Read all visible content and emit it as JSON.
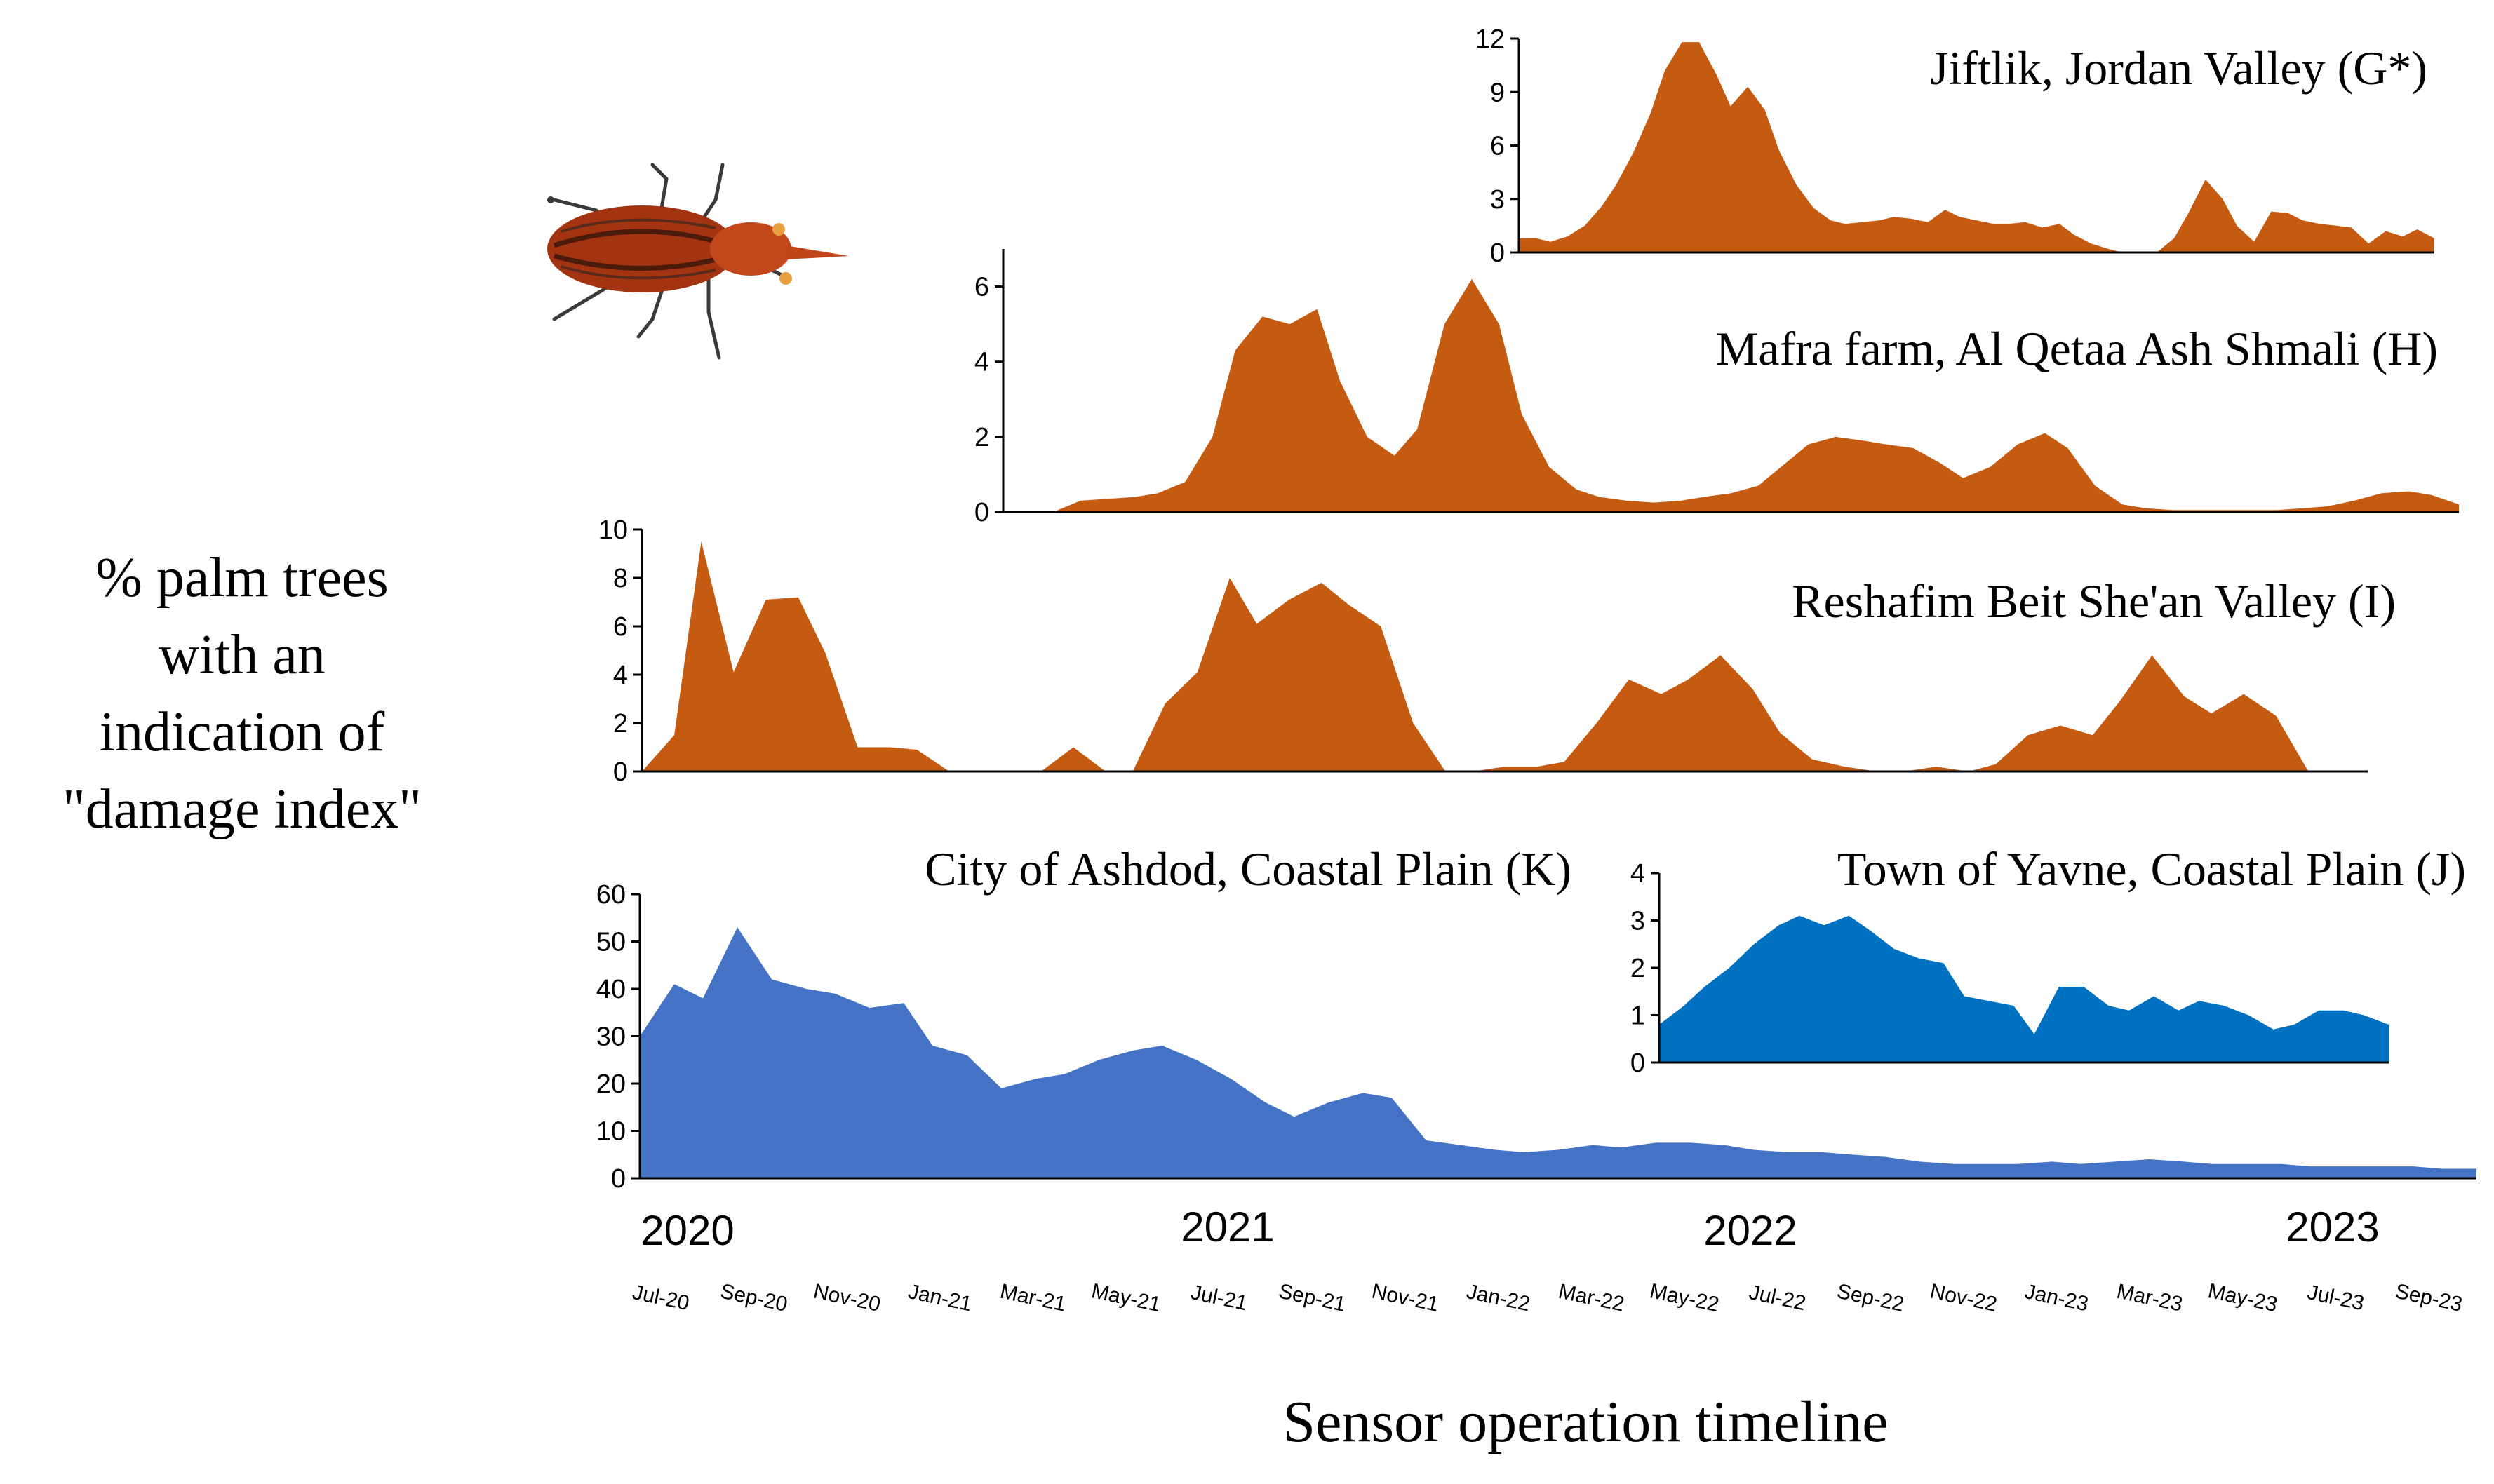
{
  "figure": {
    "ylabel_lines": [
      "% palm trees",
      "with an",
      "indication of",
      "\"damage index\""
    ],
    "xlabel": "Sensor operation timeline",
    "years": [
      "2020",
      "2021",
      "2022",
      "2023"
    ],
    "months": [
      "Jul-20",
      "Sep-20",
      "Nov-20",
      "Jan-21",
      "Mar-21",
      "May-21",
      "Jul-21",
      "Sep-21",
      "Nov-21",
      "Jan-22",
      "Mar-22",
      "May-22",
      "Jul-22",
      "Sep-22",
      "Nov-22",
      "Jan-23",
      "Mar-23",
      "May-23",
      "Jul-23",
      "Sep-23"
    ],
    "colors": {
      "orange": "#C55A11",
      "blue_dark": "#4472C4",
      "blue_mid": "#0070C0",
      "axis": "#000000"
    }
  },
  "chart_data": [
    {
      "id": "G",
      "type": "area",
      "title": "Jiftlik, Jordan Valley (G*)",
      "color": "#C55A11",
      "ylim": [
        0,
        12
      ],
      "yticks": [
        0,
        3,
        6,
        9,
        12
      ],
      "x": [
        0,
        0.6,
        1.1,
        1.7,
        2.3,
        2.9,
        3.4,
        4.0,
        4.6,
        5.1,
        5.7,
        6.3,
        6.9,
        7.4,
        8.0,
        8.6,
        9.1,
        9.7,
        10.3,
        10.9,
        11.4,
        12.0,
        12.6,
        13.1,
        13.7,
        14.3,
        14.9,
        15.4,
        16.0,
        16.6,
        17.1,
        17.7,
        18.3,
        18.9,
        19.4,
        20.0,
        20.6,
        21.1,
        21.7,
        22.3,
        22.9,
        23.4,
        24.0,
        24.6,
        25.1,
        25.7,
        26.3,
        26.9,
        27.4,
        28.0,
        28.6,
        29.1,
        29.7,
        30.3,
        30.9,
        31.4,
        32.0
      ],
      "values": [
        0.8,
        0.8,
        0.6,
        0.9,
        1.5,
        2.6,
        3.8,
        5.6,
        7.8,
        10.2,
        11.8,
        11.8,
        10.0,
        8.2,
        9.3,
        8.0,
        5.7,
        3.8,
        2.5,
        1.8,
        1.6,
        1.7,
        1.8,
        2.0,
        1.9,
        1.7,
        2.4,
        2.0,
        1.8,
        1.6,
        1.6,
        1.7,
        1.4,
        1.6,
        1.0,
        0.5,
        0.2,
        0,
        0,
        0,
        0.8,
        2.2,
        4.1,
        3.0,
        1.5,
        0.6,
        2.3,
        2.2,
        1.8,
        1.6,
        1.5,
        1.4,
        0.5,
        1.2,
        0.9,
        1.3,
        0.8
      ]
    },
    {
      "id": "H",
      "type": "area",
      "title": "Mafra farm, Al Qetaa Ash Shmali (H)",
      "color": "#C55A11",
      "ylim": [
        0,
        7
      ],
      "yticks": [
        0,
        2,
        4,
        6
      ],
      "x": [
        0,
        0.6,
        1.1,
        1.7,
        2.3,
        2.9,
        3.4,
        4.0,
        4.6,
        5.1,
        5.7,
        6.3,
        6.9,
        7.4,
        8.0,
        8.6,
        9.1,
        9.7,
        10.3,
        10.9,
        11.4,
        12.0,
        12.6,
        13.1,
        13.7,
        14.3,
        14.9,
        15.4,
        16.0,
        16.6,
        17.1,
        17.7,
        18.3,
        18.9,
        19.4,
        20.0,
        20.6,
        21.1,
        21.7,
        22.3,
        22.9,
        23.4,
        24.0,
        24.6,
        25.1,
        25.7,
        26.3,
        26.9,
        27.4,
        28.0,
        28.6,
        29.1,
        29.7,
        30.3,
        30.9,
        31.4,
        32.0
      ],
      "values": [
        0,
        0,
        0,
        0.3,
        0.35,
        0.4,
        0.5,
        0.8,
        2.0,
        4.3,
        5.2,
        5.0,
        5.4,
        3.5,
        2.0,
        1.5,
        2.2,
        5.0,
        6.2,
        5.0,
        2.6,
        1.2,
        0.6,
        0.4,
        0.3,
        0.25,
        0.3,
        0.4,
        0.5,
        0.7,
        1.2,
        1.8,
        2.0,
        1.9,
        1.8,
        1.7,
        1.3,
        0.9,
        1.2,
        1.8,
        2.1,
        1.7,
        0.7,
        0.2,
        0.1,
        0.05,
        0.05,
        0.05,
        0.05,
        0.05,
        0.1,
        0.15,
        0.3,
        0.5,
        0.55,
        0.45,
        0.2
      ]
    },
    {
      "id": "I",
      "type": "area",
      "title": "Reshafim Beit She'an Valley (I)",
      "color": "#C55A11",
      "ylim": [
        0,
        10
      ],
      "yticks": [
        0,
        2,
        4,
        6,
        8,
        10
      ],
      "x": [
        0,
        0.6,
        1.1,
        1.7,
        2.3,
        2.9,
        3.4,
        4.0,
        4.6,
        5.1,
        5.7,
        6.3,
        6.9,
        7.4,
        8.0,
        8.6,
        9.1,
        9.7,
        10.3,
        10.9,
        11.4,
        12.0,
        12.6,
        13.1,
        13.7,
        14.3,
        14.9,
        15.4,
        16.0,
        16.6,
        17.1,
        17.7,
        18.3,
        18.9,
        19.4,
        20.0,
        20.6,
        21.1,
        21.7,
        22.3,
        22.9,
        23.4,
        24.0,
        24.6,
        25.1,
        25.7,
        26.3,
        26.9,
        27.4,
        28.0,
        28.6,
        29.1,
        29.7,
        30.3,
        30.9,
        31.4,
        32.0
      ],
      "values": [
        0,
        1.5,
        9.5,
        4.1,
        7.1,
        7.2,
        4.9,
        1.0,
        1.0,
        0.9,
        0,
        0,
        0,
        0,
        1.0,
        0,
        0,
        2.8,
        4.1,
        8.0,
        6.1,
        7.1,
        7.8,
        6.9,
        6.0,
        2.0,
        0,
        0,
        0.2,
        0.2,
        0.4,
        2.0,
        3.8,
        3.2,
        3.8,
        4.8,
        3.4,
        1.6,
        0.5,
        0.2,
        0,
        0,
        0.2,
        0,
        0.3,
        1.5,
        1.9,
        1.5,
        2.9,
        4.8,
        3.1,
        2.4,
        3.2,
        2.3,
        0,
        0,
        0
      ]
    },
    {
      "id": "K",
      "type": "area",
      "title": "City of Ashdod, Coastal Plain (K)",
      "color": "#4472C4",
      "ylim": [
        0,
        60
      ],
      "yticks": [
        0,
        10,
        20,
        30,
        40,
        50,
        60
      ],
      "x": [
        0,
        0.6,
        1.1,
        1.7,
        2.3,
        2.9,
        3.4,
        4.0,
        4.6,
        5.1,
        5.7,
        6.3,
        6.9,
        7.4,
        8.0,
        8.6,
        9.1,
        9.7,
        10.3,
        10.9,
        11.4,
        12.0,
        12.6,
        13.1,
        13.7,
        14.3,
        14.9,
        15.4,
        16.0,
        16.6,
        17.1,
        17.7,
        18.3,
        18.9,
        19.4,
        20.0,
        20.6,
        21.1,
        21.7,
        22.3,
        22.9,
        23.4,
        24.0,
        24.6,
        25.1,
        25.7,
        26.3,
        26.9,
        27.4,
        28.0,
        28.6,
        29.1,
        29.7,
        30.3,
        30.9,
        31.4,
        32.0
      ],
      "values": [
        30,
        41,
        38,
        53,
        42,
        40,
        39,
        36,
        37,
        28,
        26,
        19,
        21,
        22,
        25,
        27,
        28,
        25,
        21,
        16,
        13,
        16,
        18,
        17,
        8,
        7,
        6,
        5.5,
        6,
        7,
        6.5,
        7.5,
        7.5,
        7,
        6,
        5.5,
        5.5,
        5,
        4.5,
        3.5,
        3,
        3,
        3,
        3.5,
        3,
        3.5,
        4,
        3.5,
        3,
        3,
        3,
        2.5,
        2.5,
        2.5,
        2.5,
        2,
        2
      ]
    },
    {
      "id": "J",
      "type": "area",
      "title": "Town of Yavne, Coastal Plain (J)",
      "color": "#0070C0",
      "ylim": [
        0,
        4
      ],
      "yticks": [
        0,
        1,
        2,
        3,
        4
      ],
      "x": [
        0,
        0.6,
        1.1,
        1.7,
        2.3,
        2.9,
        3.4,
        4.0,
        4.6,
        5.1,
        5.7,
        6.3,
        6.9,
        7.4,
        8.0,
        8.6,
        9.1,
        9.7,
        10.3,
        10.9,
        11.4,
        12.0,
        12.6,
        13.1,
        13.7,
        14.3,
        14.9,
        15.4,
        16.0,
        16.6,
        17.1,
        17.7
      ],
      "values": [
        0.8,
        1.2,
        1.6,
        2.0,
        2.5,
        2.9,
        3.1,
        2.9,
        3.1,
        2.8,
        2.4,
        2.2,
        2.1,
        1.4,
        1.3,
        1.2,
        0.6,
        1.6,
        1.6,
        1.2,
        1.1,
        1.4,
        1.1,
        1.3,
        1.2,
        1.0,
        0.7,
        0.8,
        1.1,
        1.1,
        1.0,
        0.8
      ]
    }
  ]
}
